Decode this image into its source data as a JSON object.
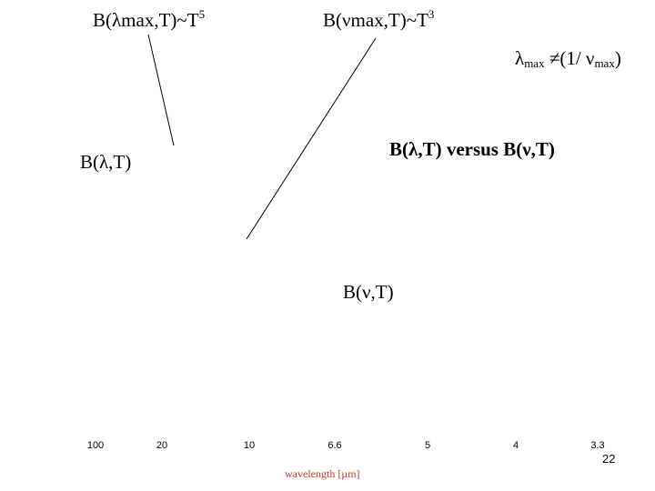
{
  "labels": {
    "b_lambda_max": {
      "text": "B(λmax,T)~T",
      "sup": "5"
    },
    "b_nu_max": {
      "text": "B(νmax,T)~T",
      "sup": "3"
    },
    "inequality": [
      "λ",
      "max",
      " ≠(1/ ν",
      "max",
      ")"
    ],
    "b_lambda": "B(λ,T)",
    "comparison": "B(λ,T) versus B(ν,T)",
    "b_nu": "B(ν,T)"
  },
  "axis": {
    "tick_labels": [
      "100",
      "20",
      "10",
      "6.6",
      "5",
      "4",
      "3.3"
    ],
    "title": "wavelength [µm]"
  },
  "slide_number": "22"
}
